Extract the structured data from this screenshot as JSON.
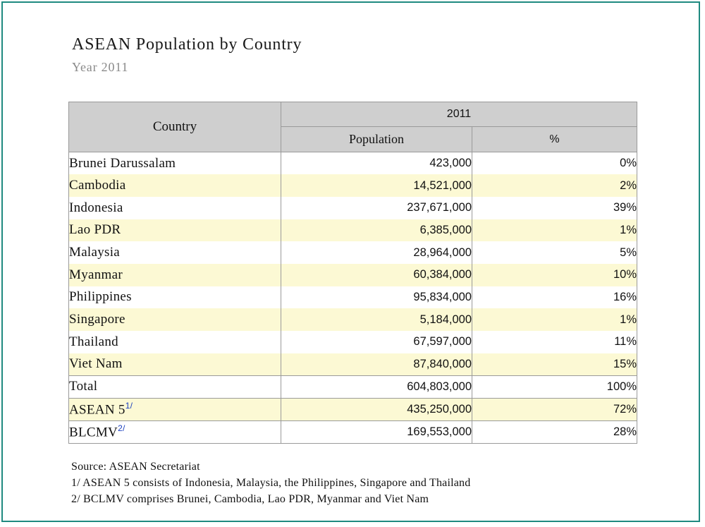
{
  "title": "ASEAN Population by Country",
  "subtitle": "Year 2011",
  "table": {
    "header": {
      "country": "Country",
      "year": "2011",
      "population": "Population",
      "percent": "%"
    },
    "rows": [
      {
        "country": "Brunei Darussalam",
        "population": "423,000",
        "percent": "0%"
      },
      {
        "country": "Cambodia",
        "population": "14,521,000",
        "percent": "2%"
      },
      {
        "country": "Indonesia",
        "population": "237,671,000",
        "percent": "39%"
      },
      {
        "country": "Lao PDR",
        "population": "6,385,000",
        "percent": "1%"
      },
      {
        "country": "Malaysia",
        "population": "28,964,000",
        "percent": "5%"
      },
      {
        "country": "Myanmar",
        "population": "60,384,000",
        "percent": "10%"
      },
      {
        "country": "Philippines",
        "population": "95,834,000",
        "percent": "16%"
      },
      {
        "country": "Singapore",
        "population": "5,184,000",
        "percent": "1%"
      },
      {
        "country": "Thailand",
        "population": "67,597,000",
        "percent": "11%"
      },
      {
        "country": "Viet Nam",
        "population": "87,840,000",
        "percent": "15%"
      }
    ],
    "total": {
      "label": "Total",
      "population": "604,803,000",
      "percent": "100%"
    },
    "asean5": {
      "label": "ASEAN 5",
      "sup": "1/",
      "population": "435,250,000",
      "percent": "72%"
    },
    "blcmv": {
      "label": "BLCMV",
      "sup": "2/",
      "population": "169,553,000",
      "percent": "28%"
    }
  },
  "notes": {
    "source": "Source: ASEAN Secretariat",
    "note1": "1/ ASEAN 5 consists of Indonesia, Malaysia, the Philippines, Singapore and Thailand",
    "note2": "2/ BCLMV comprises Brunei, Cambodia, Lao PDR, Myanmar and Viet Nam"
  },
  "colors": {
    "frame": "#1f8a80",
    "header_bg": "#cfcfcf",
    "stripe": "#fcf9d4",
    "superscript": "#1a3fbf"
  }
}
